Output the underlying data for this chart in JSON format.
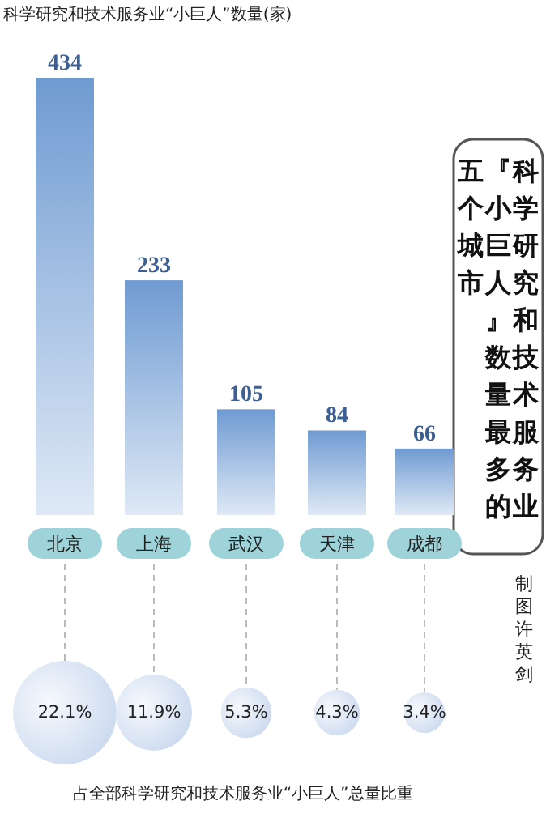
{
  "chart_data": [
    {
      "type": "bar",
      "title": "科学研究和技术服务业『小巨人』数量最多的五个城市",
      "subtitle": "科学研究和技术服务业“小巨人”数量(家)",
      "annotations": [
        "制图许英剑"
      ],
      "categories": [
        "北京",
        "上海",
        "武汉",
        "天津",
        "成都"
      ],
      "values": [
        434,
        233,
        105,
        84,
        66
      ],
      "color": "#6f9bd2",
      "data_labels": true
    },
    {
      "type": "other",
      "title": "占全部科学研究和技术服务业“小巨人”总量比重",
      "values": [
        22.1,
        11.9,
        5.3,
        4.3,
        3.4
      ],
      "value_labels": [
        "22.1%",
        "11.9%",
        "5.3%",
        "4.3%",
        "3.4%"
      ],
      "color": "#c9d8ee"
    }
  ]
}
